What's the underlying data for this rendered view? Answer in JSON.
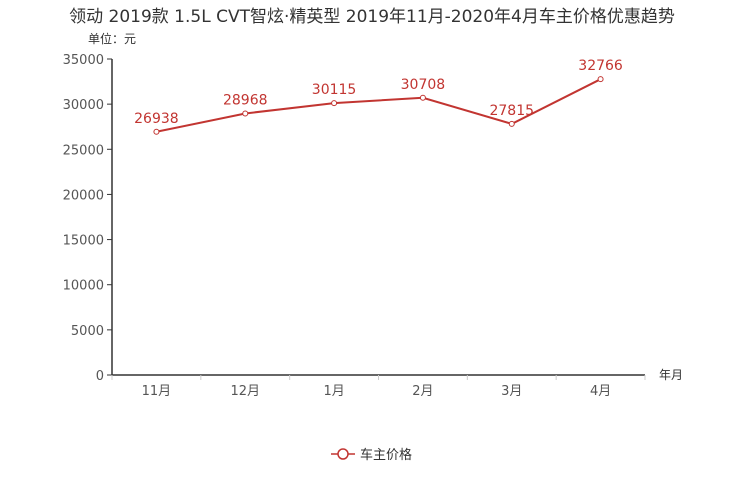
{
  "chart_data": {
    "type": "line",
    "title": "领动 2019款 1.5L CVT智炫·精英型 2019年11月-2020年4月车主价格优惠趋势",
    "ylabel": "单位：元",
    "xlabel": "年月",
    "categories": [
      "11月",
      "12月",
      "1月",
      "2月",
      "3月",
      "4月"
    ],
    "series": [
      {
        "name": "车主价格",
        "values": [
          26938,
          28968,
          30115,
          30708,
          27815,
          32766
        ],
        "color": "#c23531"
      }
    ],
    "ylim": [
      0,
      35000
    ],
    "yticks": [
      0,
      5000,
      10000,
      15000,
      20000,
      25000,
      30000,
      35000
    ],
    "grid": false,
    "legend": "bottom-center"
  }
}
